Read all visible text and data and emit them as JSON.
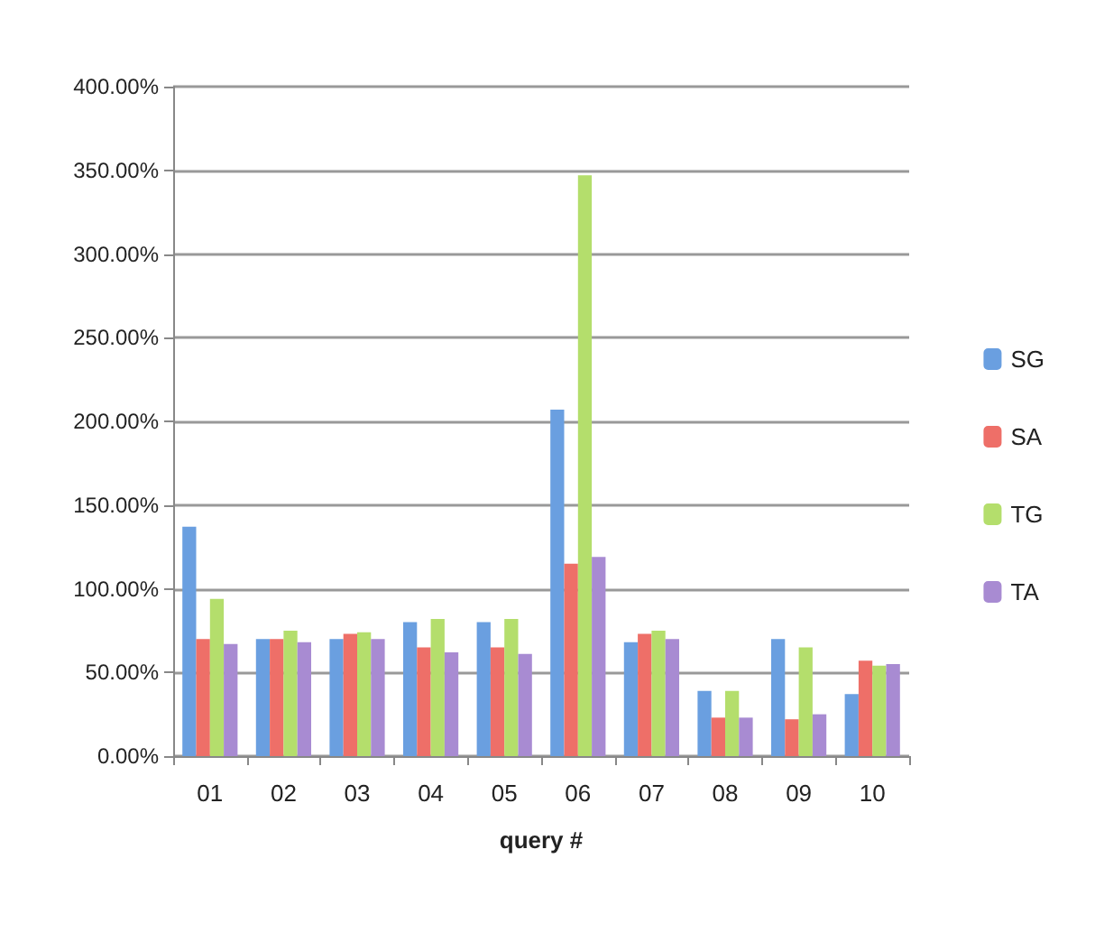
{
  "chart_data": {
    "type": "bar",
    "xlabel": "query #",
    "categories": [
      "01",
      "02",
      "03",
      "04",
      "05",
      "06",
      "07",
      "08",
      "09",
      "10"
    ],
    "series": [
      {
        "name": "SG",
        "color": "#6a9fe0",
        "values": [
          137,
          70,
          70,
          80,
          80,
          207,
          68,
          39,
          70,
          37
        ]
      },
      {
        "name": "SA",
        "color": "#ee6f68",
        "values": [
          70,
          70,
          73,
          65,
          65,
          115,
          73,
          23,
          22,
          57
        ]
      },
      {
        "name": "TG",
        "color": "#b4de6c",
        "values": [
          94,
          75,
          74,
          82,
          82,
          347,
          75,
          39,
          65,
          54
        ]
      },
      {
        "name": "TA",
        "color": "#a88bd2",
        "values": [
          67,
          68,
          70,
          62,
          61,
          119,
          70,
          23,
          25,
          55
        ]
      }
    ],
    "ylim": [
      0,
      400
    ],
    "yticks": [
      {
        "value": 0,
        "label": "0.00%"
      },
      {
        "value": 50,
        "label": "50.00%"
      },
      {
        "value": 100,
        "label": "100.00%"
      },
      {
        "value": 150,
        "label": "150.00%"
      },
      {
        "value": 200,
        "label": "200.00%"
      },
      {
        "value": 250,
        "label": "250.00%"
      },
      {
        "value": 300,
        "label": "300.00%"
      },
      {
        "value": 350,
        "label": "350.00%"
      },
      {
        "value": 400,
        "label": "400.00%"
      }
    ],
    "grid": "y",
    "legend": "right"
  }
}
